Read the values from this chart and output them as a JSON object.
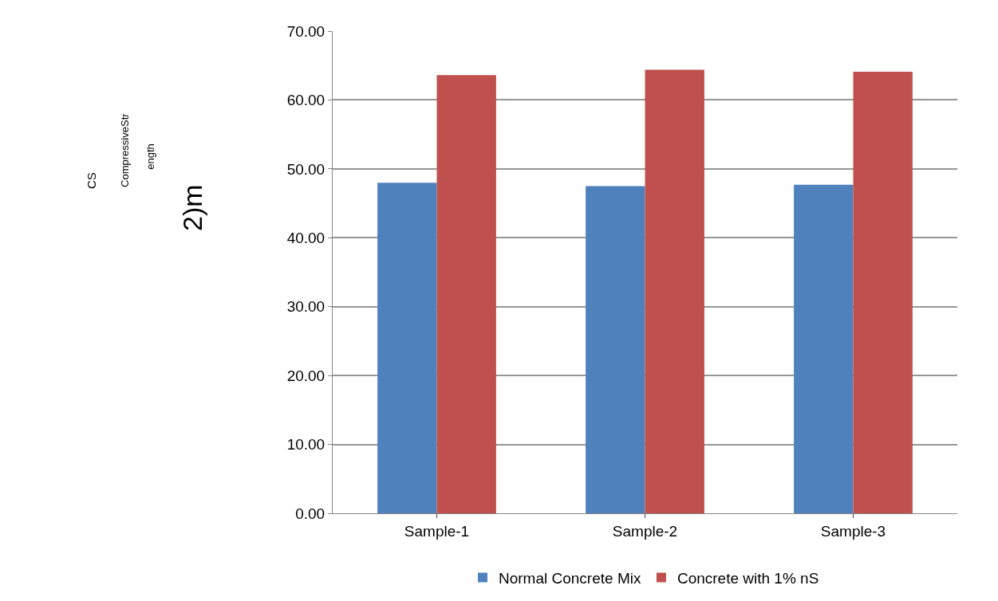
{
  "chart_data": {
    "type": "bar",
    "categories": [
      "Sample-1",
      "Sample-2",
      "Sample-3"
    ],
    "series": [
      {
        "name": "Normal Concrete Mix",
        "color": "#4f81bd",
        "values": [
          48.0,
          47.5,
          47.7
        ]
      },
      {
        "name": "Concrete with 1% nS",
        "color": "#c0504d",
        "values": [
          63.6,
          64.4,
          64.1
        ]
      }
    ],
    "annotations": [
      "CS",
      "CompressiveStr",
      "ength",
      "2)m"
    ],
    "ylim": [
      0,
      70
    ],
    "yticks": [
      {
        "value": 0,
        "label": "0.00"
      },
      {
        "value": 10,
        "label": "10.00"
      },
      {
        "value": 20,
        "label": "20.00"
      },
      {
        "value": 30,
        "label": "30.00"
      },
      {
        "value": 40,
        "label": "40.00"
      },
      {
        "value": 50,
        "label": "50.00"
      },
      {
        "value": 60,
        "label": "60.00"
      },
      {
        "value": 70,
        "label": "70.00"
      }
    ],
    "grid": "y",
    "legend": "bottom"
  }
}
